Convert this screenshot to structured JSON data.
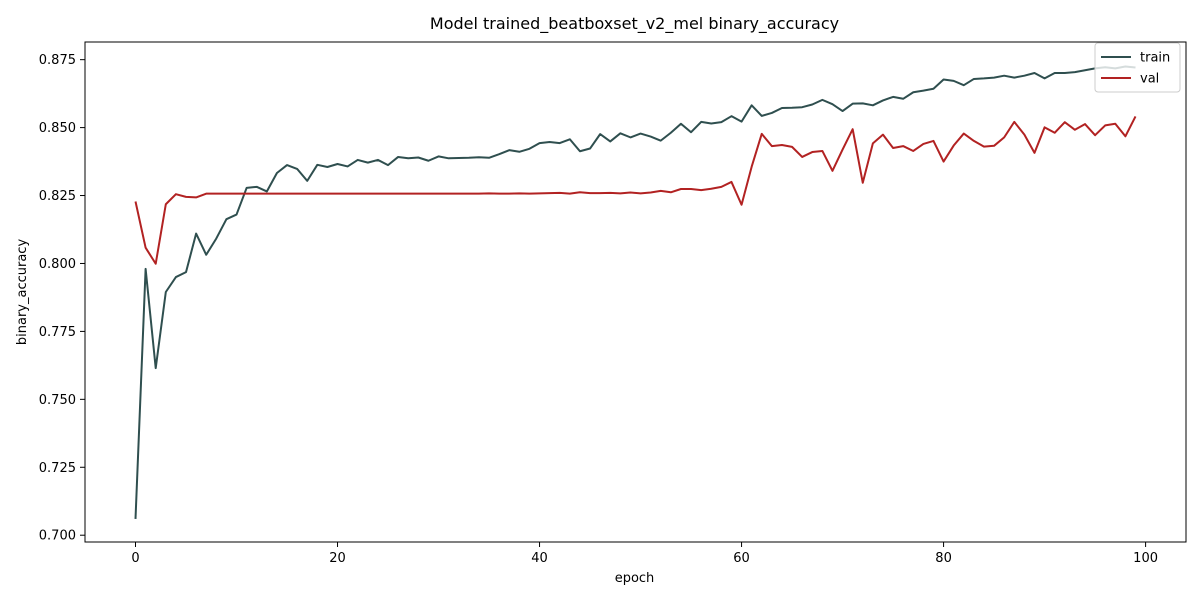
{
  "chart_data": {
    "type": "line",
    "title": "Model trained_beatboxset_v2_mel binary_accuracy",
    "xlabel": "epoch",
    "ylabel": "binary_accuracy",
    "xlim": [
      -5,
      104
    ],
    "ylim": [
      0.6975,
      0.8815
    ],
    "xticks": [
      0,
      20,
      40,
      60,
      80,
      100
    ],
    "yticks": [
      0.7,
      0.725,
      0.75,
      0.775,
      0.8,
      0.825,
      0.85,
      0.875
    ],
    "ytick_labels": [
      "0.700",
      "0.725",
      "0.750",
      "0.775",
      "0.800",
      "0.825",
      "0.850",
      "0.875"
    ],
    "grid": false,
    "legend_position": "top-right",
    "colors": {
      "train": "#2f4f4f",
      "val": "#b22222"
    },
    "series": [
      {
        "name": "train",
        "color": "#2f4f4f",
        "values": [
          0.706,
          0.798,
          0.7615,
          0.7895,
          0.795,
          0.7968,
          0.811,
          0.8032,
          0.8092,
          0.8163,
          0.818,
          0.8278,
          0.8282,
          0.8265,
          0.8333,
          0.8362,
          0.8348,
          0.8304,
          0.8363,
          0.8355,
          0.8366,
          0.8357,
          0.8381,
          0.8371,
          0.8381,
          0.8362,
          0.8392,
          0.8387,
          0.839,
          0.8378,
          0.8394,
          0.8387,
          0.8388,
          0.8389,
          0.8391,
          0.8389,
          0.8402,
          0.8417,
          0.8411,
          0.8422,
          0.8443,
          0.8447,
          0.8443,
          0.8457,
          0.8413,
          0.8423,
          0.8476,
          0.8449,
          0.8479,
          0.8464,
          0.8478,
          0.8467,
          0.8452,
          0.8481,
          0.8514,
          0.8483,
          0.8521,
          0.8515,
          0.852,
          0.8542,
          0.8522,
          0.8582,
          0.8543,
          0.8554,
          0.8572,
          0.8573,
          0.8575,
          0.8585,
          0.8602,
          0.8586,
          0.8561,
          0.8588,
          0.8589,
          0.8582,
          0.86,
          0.8613,
          0.8606,
          0.863,
          0.8636,
          0.8643,
          0.8677,
          0.8672,
          0.8656,
          0.8679,
          0.8681,
          0.8684,
          0.8691,
          0.8684,
          0.8691,
          0.8701,
          0.8681,
          0.8701,
          0.8701,
          0.8704,
          0.8711,
          0.8718,
          0.8722,
          0.8718,
          0.8725,
          0.8721
        ]
      },
      {
        "name": "val",
        "color": "#b22222",
        "values": [
          0.8228,
          0.8058,
          0.7999,
          0.8218,
          0.8255,
          0.8245,
          0.8243,
          0.8257,
          0.8257,
          0.8257,
          0.8257,
          0.8257,
          0.8257,
          0.8257,
          0.8257,
          0.8257,
          0.8257,
          0.8257,
          0.8257,
          0.8257,
          0.8257,
          0.8257,
          0.8257,
          0.8257,
          0.8257,
          0.8257,
          0.8257,
          0.8257,
          0.8257,
          0.8257,
          0.8257,
          0.8257,
          0.8257,
          0.8257,
          0.8257,
          0.8258,
          0.8257,
          0.8257,
          0.8258,
          0.8257,
          0.8258,
          0.8259,
          0.826,
          0.8257,
          0.8262,
          0.8259,
          0.8259,
          0.826,
          0.8258,
          0.8261,
          0.8258,
          0.8261,
          0.8267,
          0.8262,
          0.8274,
          0.8274,
          0.827,
          0.8275,
          0.8282,
          0.83,
          0.8216,
          0.8356,
          0.8477,
          0.8432,
          0.8436,
          0.8429,
          0.8392,
          0.841,
          0.8414,
          0.8341,
          0.8419,
          0.8494,
          0.8297,
          0.8442,
          0.8474,
          0.8425,
          0.8432,
          0.8414,
          0.844,
          0.8451,
          0.8375,
          0.8434,
          0.8478,
          0.8451,
          0.843,
          0.8433,
          0.8464,
          0.8521,
          0.8474,
          0.8407,
          0.8501,
          0.8481,
          0.852,
          0.8492,
          0.8513,
          0.8472,
          0.8508,
          0.8514,
          0.8468,
          0.8541
        ]
      }
    ]
  }
}
